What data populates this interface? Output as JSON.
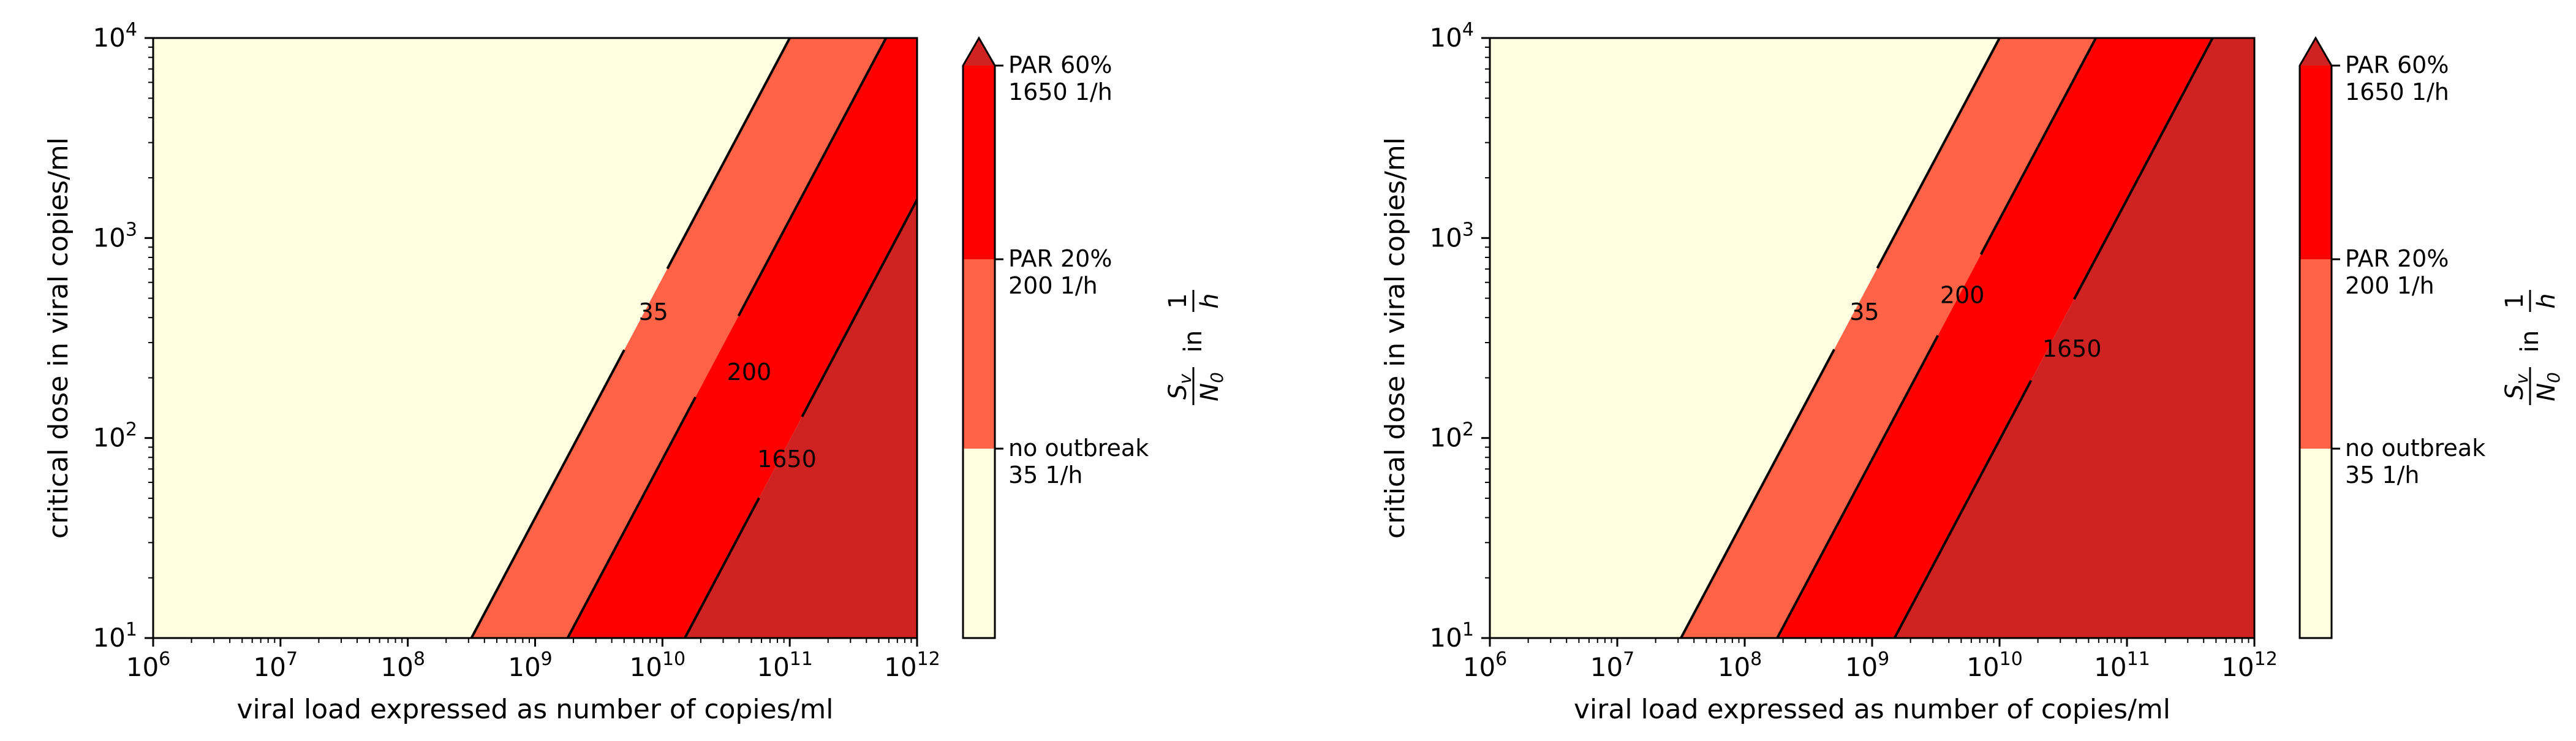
{
  "chart_data": [
    {
      "type": "contour",
      "xlabel": "viral load expressed as number of copies/ml",
      "ylabel": "critical dose in viral copies/ml",
      "xscale": "log",
      "yscale": "log",
      "xlim": [
        1000000,
        1000000000000
      ],
      "ylim": [
        10,
        10000
      ],
      "x_ticks": [
        {
          "base": "10",
          "exp": "6"
        },
        {
          "base": "10",
          "exp": "7"
        },
        {
          "base": "10",
          "exp": "8"
        },
        {
          "base": "10",
          "exp": "9"
        },
        {
          "base": "10",
          "exp": "10"
        },
        {
          "base": "10",
          "exp": "11"
        },
        {
          "base": "10",
          "exp": "12"
        }
      ],
      "y_ticks": [
        {
          "base": "10",
          "exp": "1"
        },
        {
          "base": "10",
          "exp": "2"
        },
        {
          "base": "10",
          "exp": "3"
        },
        {
          "base": "10",
          "exp": "4"
        }
      ],
      "colors": [
        "#fefee0",
        "#fe6247",
        "#fe0000",
        "#cf2222"
      ],
      "contours": [
        {
          "label": "35",
          "x_at_ymin": 316000000,
          "x_at_ymax": 100000000000,
          "label_x": 8500000000,
          "label_y": 420
        },
        {
          "label": "200",
          "x_at_ymin": 1800000000,
          "x_at_ymax": 570000000000,
          "label_x": 48000000000,
          "label_y": 210
        },
        {
          "label": "1650",
          "x_at_ymin": 15000000000,
          "x_at_ymax": 4700000000000,
          "label_x": 95000000000,
          "label_y": 77
        }
      ],
      "colorbar": {
        "title": "S_v / N_0 in 1/h",
        "levels": [
          {
            "line1": "no outbreak",
            "line2": "35 1/h"
          },
          {
            "line1": "PAR 20%",
            "line2": "200 1/h"
          },
          {
            "line1": "PAR 60%",
            "line2": "1650 1/h"
          }
        ]
      }
    },
    {
      "type": "contour",
      "xlabel": "viral load expressed as number of copies/ml",
      "ylabel": "critical dose in viral copies/ml",
      "xscale": "log",
      "yscale": "log",
      "xlim": [
        1000000,
        1000000000000
      ],
      "ylim": [
        10,
        10000
      ],
      "x_ticks": [
        {
          "base": "10",
          "exp": "6"
        },
        {
          "base": "10",
          "exp": "7"
        },
        {
          "base": "10",
          "exp": "8"
        },
        {
          "base": "10",
          "exp": "9"
        },
        {
          "base": "10",
          "exp": "10"
        },
        {
          "base": "10",
          "exp": "11"
        },
        {
          "base": "10",
          "exp": "12"
        }
      ],
      "y_ticks": [
        {
          "base": "10",
          "exp": "1"
        },
        {
          "base": "10",
          "exp": "2"
        },
        {
          "base": "10",
          "exp": "3"
        },
        {
          "base": "10",
          "exp": "4"
        }
      ],
      "colors": [
        "#fefee0",
        "#fe6247",
        "#fe0000",
        "#cf2222"
      ],
      "contours": [
        {
          "label": "35",
          "x_at_ymin": 31600000,
          "x_at_ymax": 10000000000,
          "label_x": 870000000,
          "label_y": 420
        },
        {
          "label": "200",
          "x_at_ymin": 180000000,
          "x_at_ymax": 57000000000,
          "label_x": 5100000000,
          "label_y": 510
        },
        {
          "label": "1650",
          "x_at_ymin": 1500000000,
          "x_at_ymax": 470000000000,
          "label_x": 37000000000,
          "label_y": 275
        }
      ],
      "colorbar": {
        "title": "S_v / N_0 in 1/h",
        "levels": [
          {
            "line1": "no outbreak",
            "line2": "35 1/h"
          },
          {
            "line1": "PAR 20%",
            "line2": "200 1/h"
          },
          {
            "line1": "PAR 60%",
            "line2": "1650 1/h"
          }
        ]
      }
    }
  ]
}
